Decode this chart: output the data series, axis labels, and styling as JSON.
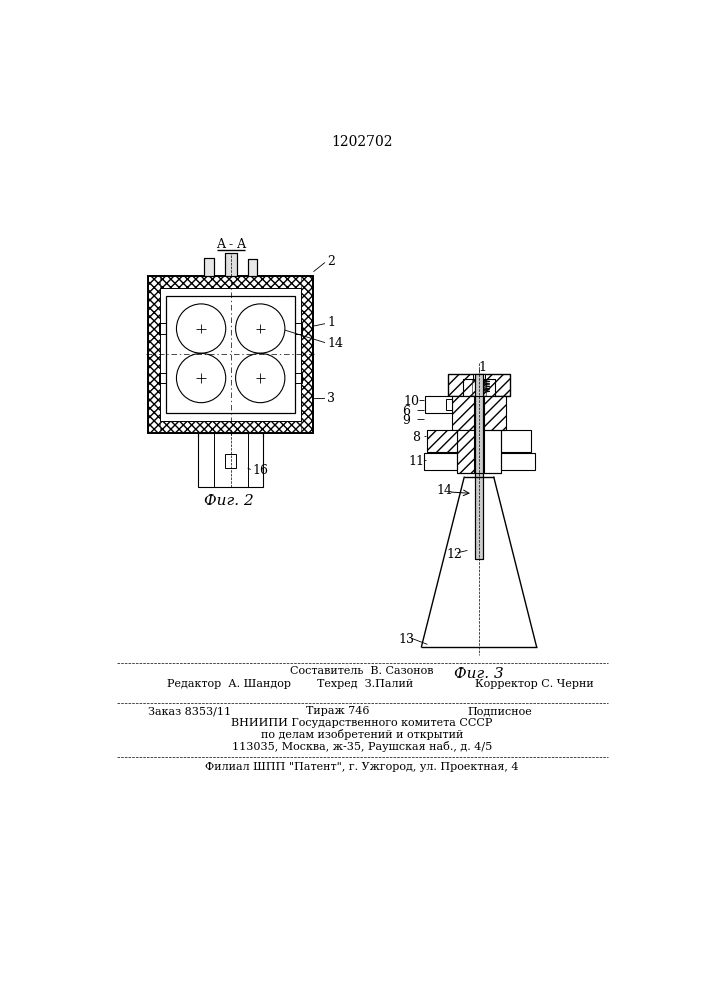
{
  "patent_number": "1202702",
  "fig2_label": "Фиг. 2",
  "fig3_label": "Фиг. 3",
  "section_label": "A - A",
  "bg_color": "#ffffff",
  "line_color": "#000000",
  "footer_lines": [
    "Составитель  В. Сазонов",
    "Редактор  А. Шандор",
    "Техред  З.Палий",
    "Корректор С. Черни",
    "Заказ 8353/11",
    "Тираж 746",
    "Подписное",
    "ВНИИПИ Государственного комитета СССР",
    "по делам изобретений и открытий",
    "113035, Москва, ж-35, Раушская наб., д. 4/5",
    "Филиал ШПП \"Патент\", г. Ужгород, ул. Проектная, 4"
  ]
}
